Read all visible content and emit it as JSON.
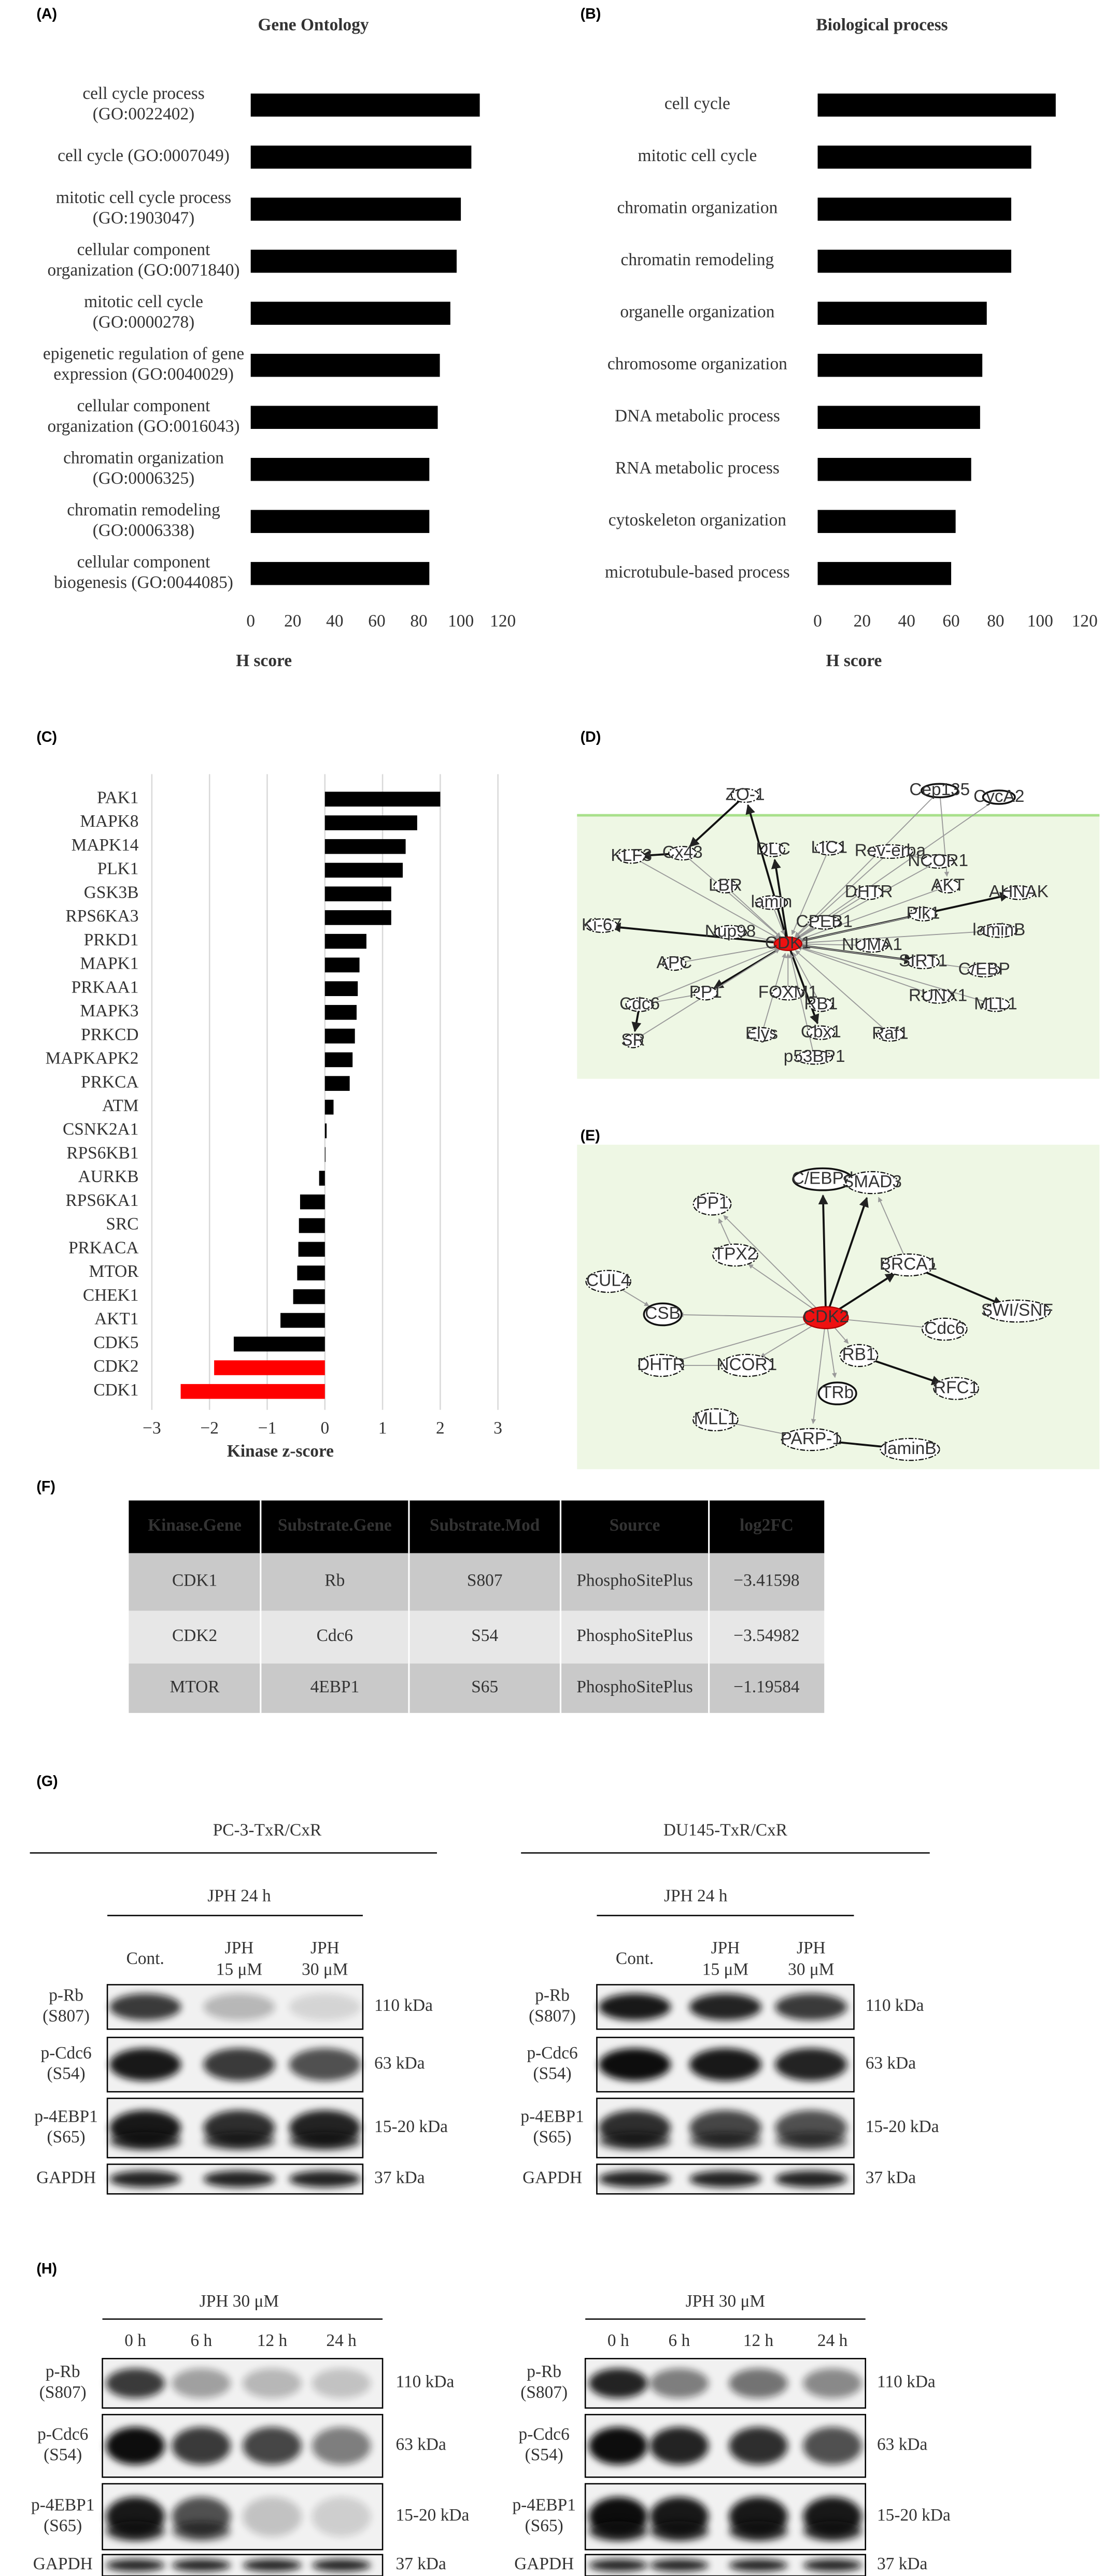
{
  "chart_data": [
    {
      "type": "bar",
      "orientation": "horizontal",
      "panel_label": "(A)",
      "title": "Gene Ontology",
      "x_label": "H score",
      "categories": [
        "cell cycle process\n(GO:0022402)",
        "cell cycle (GO:0007049)",
        "mitotic cell cycle process\n(GO:1903047)",
        "cellular component\norganization (GO:0071840)",
        "mitotic cell cycle\n(GO:0000278)",
        "epigenetic regulation of gene\nexpression (GO:0040029)",
        "cellular component\norganization (GO:0016043)",
        "chromatin organization\n(GO:0006325)",
        "chromatin remodeling\n(GO:0006338)",
        "cellular component\nbiogenesis (GO:0044085)"
      ],
      "values": [
        109,
        105,
        100,
        98,
        95,
        90,
        89,
        85,
        85,
        85
      ],
      "color": "#000000",
      "xlim": [
        0,
        120
      ],
      "xticks": [
        0,
        20,
        40,
        60,
        80,
        100,
        120
      ],
      "grid": false
    },
    {
      "type": "bar",
      "orientation": "horizontal",
      "panel_label": "(B)",
      "title": "Biological process",
      "x_label": "H score",
      "categories": [
        "cell cycle",
        "mitotic cell cycle",
        "chromatin organization",
        "chromatin remodeling",
        "organelle organization",
        "chromosome organization",
        "DNA metabolic process",
        "RNA metabolic process",
        "cytoskeleton organization",
        "microtubule-based process"
      ],
      "values": [
        107,
        96,
        87,
        87,
        76,
        74,
        73,
        69,
        62,
        60
      ],
      "color": "#000000",
      "xlim": [
        0,
        120
      ],
      "xticks": [
        0,
        20,
        40,
        60,
        80,
        100,
        120
      ],
      "grid": false
    },
    {
      "type": "bar",
      "orientation": "horizontal",
      "panel_label": "(C)",
      "x_label": "Kinase z-score",
      "categories": [
        "PAK1",
        "MAPK8",
        "MAPK14",
        "PLK1",
        "GSK3B",
        "RPS6KA3",
        "PRKD1",
        "MAPK1",
        "PRKAA1",
        "MAPK3",
        "PRKCD",
        "MAPKAPK2",
        "PRKCA",
        "ATM",
        "CSNK2A1",
        "RPS6KB1",
        "AURKB",
        "RPS6KA1",
        "SRC",
        "PRKACA",
        "MTOR",
        "CHEK1",
        "AKT1",
        "CDK5",
        "CDK2",
        "CDK1"
      ],
      "values": [
        2.0,
        1.6,
        1.4,
        1.35,
        1.15,
        1.15,
        0.72,
        0.6,
        0.57,
        0.55,
        0.52,
        0.48,
        0.43,
        0.15,
        0.03,
        0.01,
        -0.1,
        -0.43,
        -0.45,
        -0.46,
        -0.48,
        -0.55,
        -0.77,
        -1.58,
        -1.92,
        -2.5
      ],
      "colors": [
        "#000000",
        "#000000",
        "#000000",
        "#000000",
        "#000000",
        "#000000",
        "#000000",
        "#000000",
        "#000000",
        "#000000",
        "#000000",
        "#000000",
        "#000000",
        "#000000",
        "#000000",
        "#000000",
        "#000000",
        "#000000",
        "#000000",
        "#000000",
        "#000000",
        "#000000",
        "#000000",
        "#000000",
        "#ff0000",
        "#ff0000"
      ],
      "xlim": [
        -3,
        3
      ],
      "xticks": [
        {
          "value": -3,
          "label": "−3"
        },
        {
          "value": -2,
          "label": "−2"
        },
        {
          "value": -1,
          "label": "−1"
        },
        0,
        1,
        2,
        3
      ],
      "grid": true
    }
  ],
  "network_d": {
    "panel_label": "(D)",
    "nodes": [
      "CDK1",
      "ZO-1",
      "Cep135",
      "CycA2",
      "KLF3",
      "Cx43",
      "DLC",
      "LIC1",
      "Rev-erba",
      "NCOR1",
      "AKT",
      "AHNAK",
      "LBR",
      "lamin",
      "DHTR",
      "Plk1",
      "Ki-67",
      "Nup98",
      "CPEB1",
      "laminB",
      "APC",
      "SIRT1",
      "NUMA1",
      "C/EBP",
      "RB1",
      "FOXM1",
      "PP1",
      "Cdc6",
      "SR",
      "RUNX1",
      "MLL1",
      "Cbx1",
      "Elys",
      "p53BP1",
      "Raf1"
    ]
  },
  "network_e": {
    "panel_label": "(E)",
    "nodes": [
      "CDK2",
      "PP1",
      "C/EBPd",
      "SMAD3",
      "TPX2",
      "BRCA1",
      "CUL4",
      "CSB",
      "SWI/SNF",
      "Cdc6",
      "RB1",
      "DHTR",
      "NCOR1",
      "RFC1",
      "TRb",
      "MLL1",
      "PARP-1",
      "laminB"
    ]
  },
  "table": {
    "panel_label": "(F)",
    "header": [
      "Kinase.Gene",
      "Substrate.Gene",
      "Substrate.Mod",
      "Source",
      "log2FC"
    ],
    "rows": [
      [
        "CDK1",
        "Rb",
        "S807",
        "PhosphoSitePlus",
        "−3.41598"
      ],
      [
        "CDK2",
        "Cdc6",
        "S54",
        "PhosphoSitePlus",
        "−3.54982"
      ],
      [
        "MTOR",
        "4EBP1",
        "S65",
        "PhosphoSitePlus",
        "−1.19584"
      ]
    ]
  },
  "blots": [
    {
      "panel_label": "(G)",
      "panels": [
        {
          "cell_line": "PC-3-TxR/CxR",
          "treatment": "JPH 24 h",
          "lanes": [
            "Cont.",
            "JPH\n15 μM",
            "JPH\n30 μM"
          ],
          "proteins": [
            "p-Rb\n(S807)",
            "p-Cdc6\n(S54)",
            "p-4EBP1\n(S65)",
            "GAPDH"
          ],
          "sizes": [
            "110 kDa",
            "63 kDa",
            "15-20 kDa",
            "37 kDa"
          ]
        },
        {
          "cell_line": "DU145-TxR/CxR",
          "treatment": "JPH 24 h",
          "lanes": [
            "Cont.",
            "JPH\n15 μM",
            "JPH\n30 μM"
          ],
          "proteins": [
            "p-Rb\n(S807)",
            "p-Cdc6\n(S54)",
            "p-4EBP1\n(S65)",
            "GAPDH"
          ],
          "sizes": [
            "110 kDa",
            "63 kDa",
            "15-20 kDa",
            "37 kDa"
          ]
        }
      ]
    },
    {
      "panel_label": "(H)",
      "panels": [
        {
          "treatment": "JPH 30 μM",
          "lanes": [
            "0 h",
            "6 h",
            "12 h",
            "24 h"
          ],
          "proteins": [
            "p-Rb\n(S807)",
            "p-Cdc6\n(S54)",
            "p-4EBP1\n(S65)",
            "GAPDH"
          ],
          "sizes": [
            "110 kDa",
            "63 kDa",
            "15-20 kDa",
            "37 kDa"
          ]
        },
        {
          "treatment": "JPH 30 μM",
          "lanes": [
            "0 h",
            "6 h",
            "12 h",
            "24 h"
          ],
          "proteins": [
            "p-Rb\n(S807)",
            "p-Cdc6\n(S54)",
            "p-4EBP1\n(S65)",
            "GAPDH"
          ],
          "sizes": [
            "110 kDa",
            "63 kDa",
            "15-20 kDa",
            "37 kDa"
          ]
        }
      ]
    }
  ]
}
